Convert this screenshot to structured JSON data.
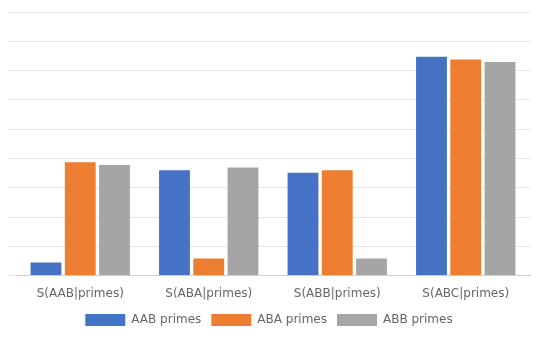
{
  "chart_data": {
    "type": "bar",
    "categories": [
      "S(AAB|primes)",
      "S(ABA|primes)",
      "S(ABB|primes)",
      "S(ABC|primes)"
    ],
    "series": [
      {
        "name": "AAB primes",
        "color": "#4472c4",
        "values": [
          0.05,
          0.4,
          0.39,
          0.83
        ]
      },
      {
        "name": "ABA primes",
        "color": "#ed7d31",
        "values": [
          0.43,
          0.065,
          0.4,
          0.82
        ]
      },
      {
        "name": "ABB primes",
        "color": "#a5a5a5",
        "values": [
          0.42,
          0.41,
          0.065,
          0.81
        ]
      }
    ],
    "ylim": [
      0,
      1.0
    ],
    "yticks": [
      0,
      0.1111111111111111,
      0.2222222222222222,
      0.3333333333333333,
      0.4444444444444444,
      0.5555555555555556,
      0.6666666666666666,
      0.7777777777777777,
      0.8888888888888888,
      1.0
    ],
    "grid": true,
    "legend": "bottom",
    "tick_labels": "x"
  }
}
